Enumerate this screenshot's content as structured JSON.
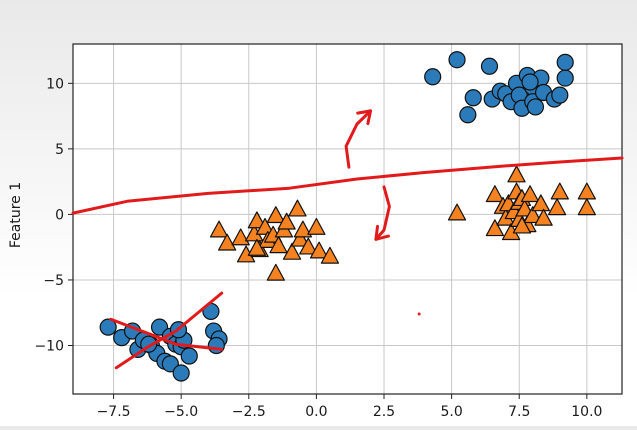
{
  "chart_data": {
    "type": "scatter",
    "title": "",
    "xlabel": "",
    "ylabel": "Feature 1",
    "xlim": [
      -9.0,
      11.3
    ],
    "ylim": [
      -13.7,
      13.0
    ],
    "grid": true,
    "x_ticks": [
      -7.5,
      -5.0,
      -2.5,
      0.0,
      2.5,
      5.0,
      7.5,
      10.0
    ],
    "x_tick_labels": [
      "−7.5",
      "−5.0",
      "−2.5",
      "0.0",
      "2.5",
      "5.0",
      "7.5",
      "10.0"
    ],
    "y_ticks": [
      -10,
      -5,
      0,
      5,
      10
    ],
    "y_tick_labels": [
      "−10",
      "−5",
      "0",
      "5",
      "10"
    ],
    "colors": {
      "circle": "#2b7bba",
      "triangle": "#f58220",
      "ink": "#e31a1c"
    },
    "series": [
      {
        "marker": "circle",
        "points": [
          [
            -7.7,
            -8.6
          ],
          [
            -7.2,
            -9.4
          ],
          [
            -6.8,
            -8.9
          ],
          [
            -6.6,
            -10.3
          ],
          [
            -6.4,
            -9.6
          ],
          [
            -6.1,
            -10.0
          ],
          [
            -5.8,
            -8.6
          ],
          [
            -5.9,
            -10.6
          ],
          [
            -5.6,
            -11.2
          ],
          [
            -5.4,
            -9.3
          ],
          [
            -5.2,
            -9.9
          ],
          [
            -5.0,
            -10.1
          ],
          [
            -4.9,
            -9.6
          ],
          [
            -5.4,
            -11.4
          ],
          [
            -5.0,
            -12.1
          ],
          [
            -4.7,
            -10.8
          ],
          [
            -3.9,
            -7.4
          ],
          [
            -3.8,
            -8.9
          ],
          [
            -3.6,
            -9.5
          ],
          [
            -3.7,
            -10.0
          ],
          [
            -5.1,
            -8.8
          ],
          [
            -6.2,
            -9.9
          ],
          [
            4.3,
            10.5
          ],
          [
            5.2,
            11.8
          ],
          [
            5.6,
            7.6
          ],
          [
            5.8,
            8.9
          ],
          [
            6.4,
            11.3
          ],
          [
            6.5,
            8.8
          ],
          [
            6.8,
            9.4
          ],
          [
            7.0,
            9.2
          ],
          [
            7.2,
            8.6
          ],
          [
            7.4,
            10.0
          ],
          [
            7.5,
            9.1
          ],
          [
            7.6,
            8.1
          ],
          [
            7.8,
            10.6
          ],
          [
            8.0,
            9.7
          ],
          [
            8.0,
            8.6
          ],
          [
            8.1,
            8.2
          ],
          [
            8.3,
            10.4
          ],
          [
            8.4,
            9.3
          ],
          [
            8.8,
            8.8
          ],
          [
            9.0,
            9.1
          ],
          [
            9.2,
            10.4
          ],
          [
            9.2,
            11.6
          ],
          [
            7.9,
            10.1
          ]
        ]
      },
      {
        "marker": "triangle",
        "points": [
          [
            -3.6,
            -1.2
          ],
          [
            -3.3,
            -2.2
          ],
          [
            -2.8,
            -1.8
          ],
          [
            -2.6,
            -3.1
          ],
          [
            -2.3,
            -1.5
          ],
          [
            -2.1,
            -2.7
          ],
          [
            -2.2,
            -0.5
          ],
          [
            -1.9,
            -1.0
          ],
          [
            -1.8,
            -2.0
          ],
          [
            -1.6,
            -1.6
          ],
          [
            -1.5,
            -0.1
          ],
          [
            -1.4,
            -2.4
          ],
          [
            -1.2,
            -1.2
          ],
          [
            -1.1,
            -0.6
          ],
          [
            -0.9,
            -2.9
          ],
          [
            -0.7,
            0.4
          ],
          [
            -0.6,
            -1.9
          ],
          [
            -0.5,
            -1.2
          ],
          [
            -0.3,
            -2.5
          ],
          [
            0.0,
            -1.0
          ],
          [
            0.1,
            -2.8
          ],
          [
            0.5,
            -3.2
          ],
          [
            -1.5,
            -4.5
          ],
          [
            -2.2,
            -2.6
          ],
          [
            5.2,
            0.1
          ],
          [
            6.6,
            1.5
          ],
          [
            6.6,
            -1.1
          ],
          [
            6.9,
            0.6
          ],
          [
            7.0,
            -0.3
          ],
          [
            7.1,
            0.8
          ],
          [
            7.2,
            -1.4
          ],
          [
            7.3,
            0.2
          ],
          [
            7.4,
            1.7
          ],
          [
            7.5,
            0.9
          ],
          [
            7.5,
            -0.4
          ],
          [
            7.6,
            1.2
          ],
          [
            7.7,
            0.4
          ],
          [
            7.8,
            -0.8
          ],
          [
            7.9,
            1.5
          ],
          [
            8.0,
            -0.1
          ],
          [
            8.3,
            0.8
          ],
          [
            8.4,
            -0.3
          ],
          [
            8.9,
            0.5
          ],
          [
            9.0,
            1.7
          ],
          [
            10.0,
            0.5
          ],
          [
            10.0,
            1.7
          ],
          [
            7.4,
            3.0
          ],
          [
            7.6,
            -0.9
          ]
        ]
      }
    ],
    "annotations": [
      {
        "type": "freehand_line",
        "points": [
          [
            -9.0,
            0.1
          ],
          [
            -7.0,
            1.0
          ],
          [
            -4.0,
            1.6
          ],
          [
            -1.0,
            2.0
          ],
          [
            1.5,
            2.7
          ],
          [
            4.0,
            3.2
          ],
          [
            7.0,
            3.7
          ],
          [
            9.0,
            4.0
          ],
          [
            11.3,
            4.3
          ]
        ]
      },
      {
        "type": "freehand_arrow",
        "direction": "up",
        "points": [
          [
            1.2,
            3.6
          ],
          [
            1.1,
            5.2
          ],
          [
            1.5,
            6.9
          ],
          [
            2.0,
            7.9
          ]
        ]
      },
      {
        "type": "freehand_arrow",
        "direction": "down",
        "points": [
          [
            2.5,
            2.1
          ],
          [
            2.7,
            0.6
          ],
          [
            2.5,
            -1.2
          ],
          [
            2.2,
            -1.9
          ]
        ]
      },
      {
        "type": "freehand_line",
        "points": [
          [
            -7.4,
            -11.7
          ],
          [
            -6.3,
            -10.2
          ],
          [
            -5.2,
            -8.9
          ],
          [
            -3.5,
            -6.0
          ]
        ]
      },
      {
        "type": "freehand_line",
        "points": [
          [
            -7.6,
            -8.0
          ],
          [
            -6.2,
            -9.1
          ],
          [
            -5.2,
            -9.9
          ],
          [
            -3.5,
            -10.3
          ]
        ]
      },
      {
        "type": "dot",
        "points": [
          [
            3.8,
            -7.6
          ]
        ]
      }
    ]
  }
}
